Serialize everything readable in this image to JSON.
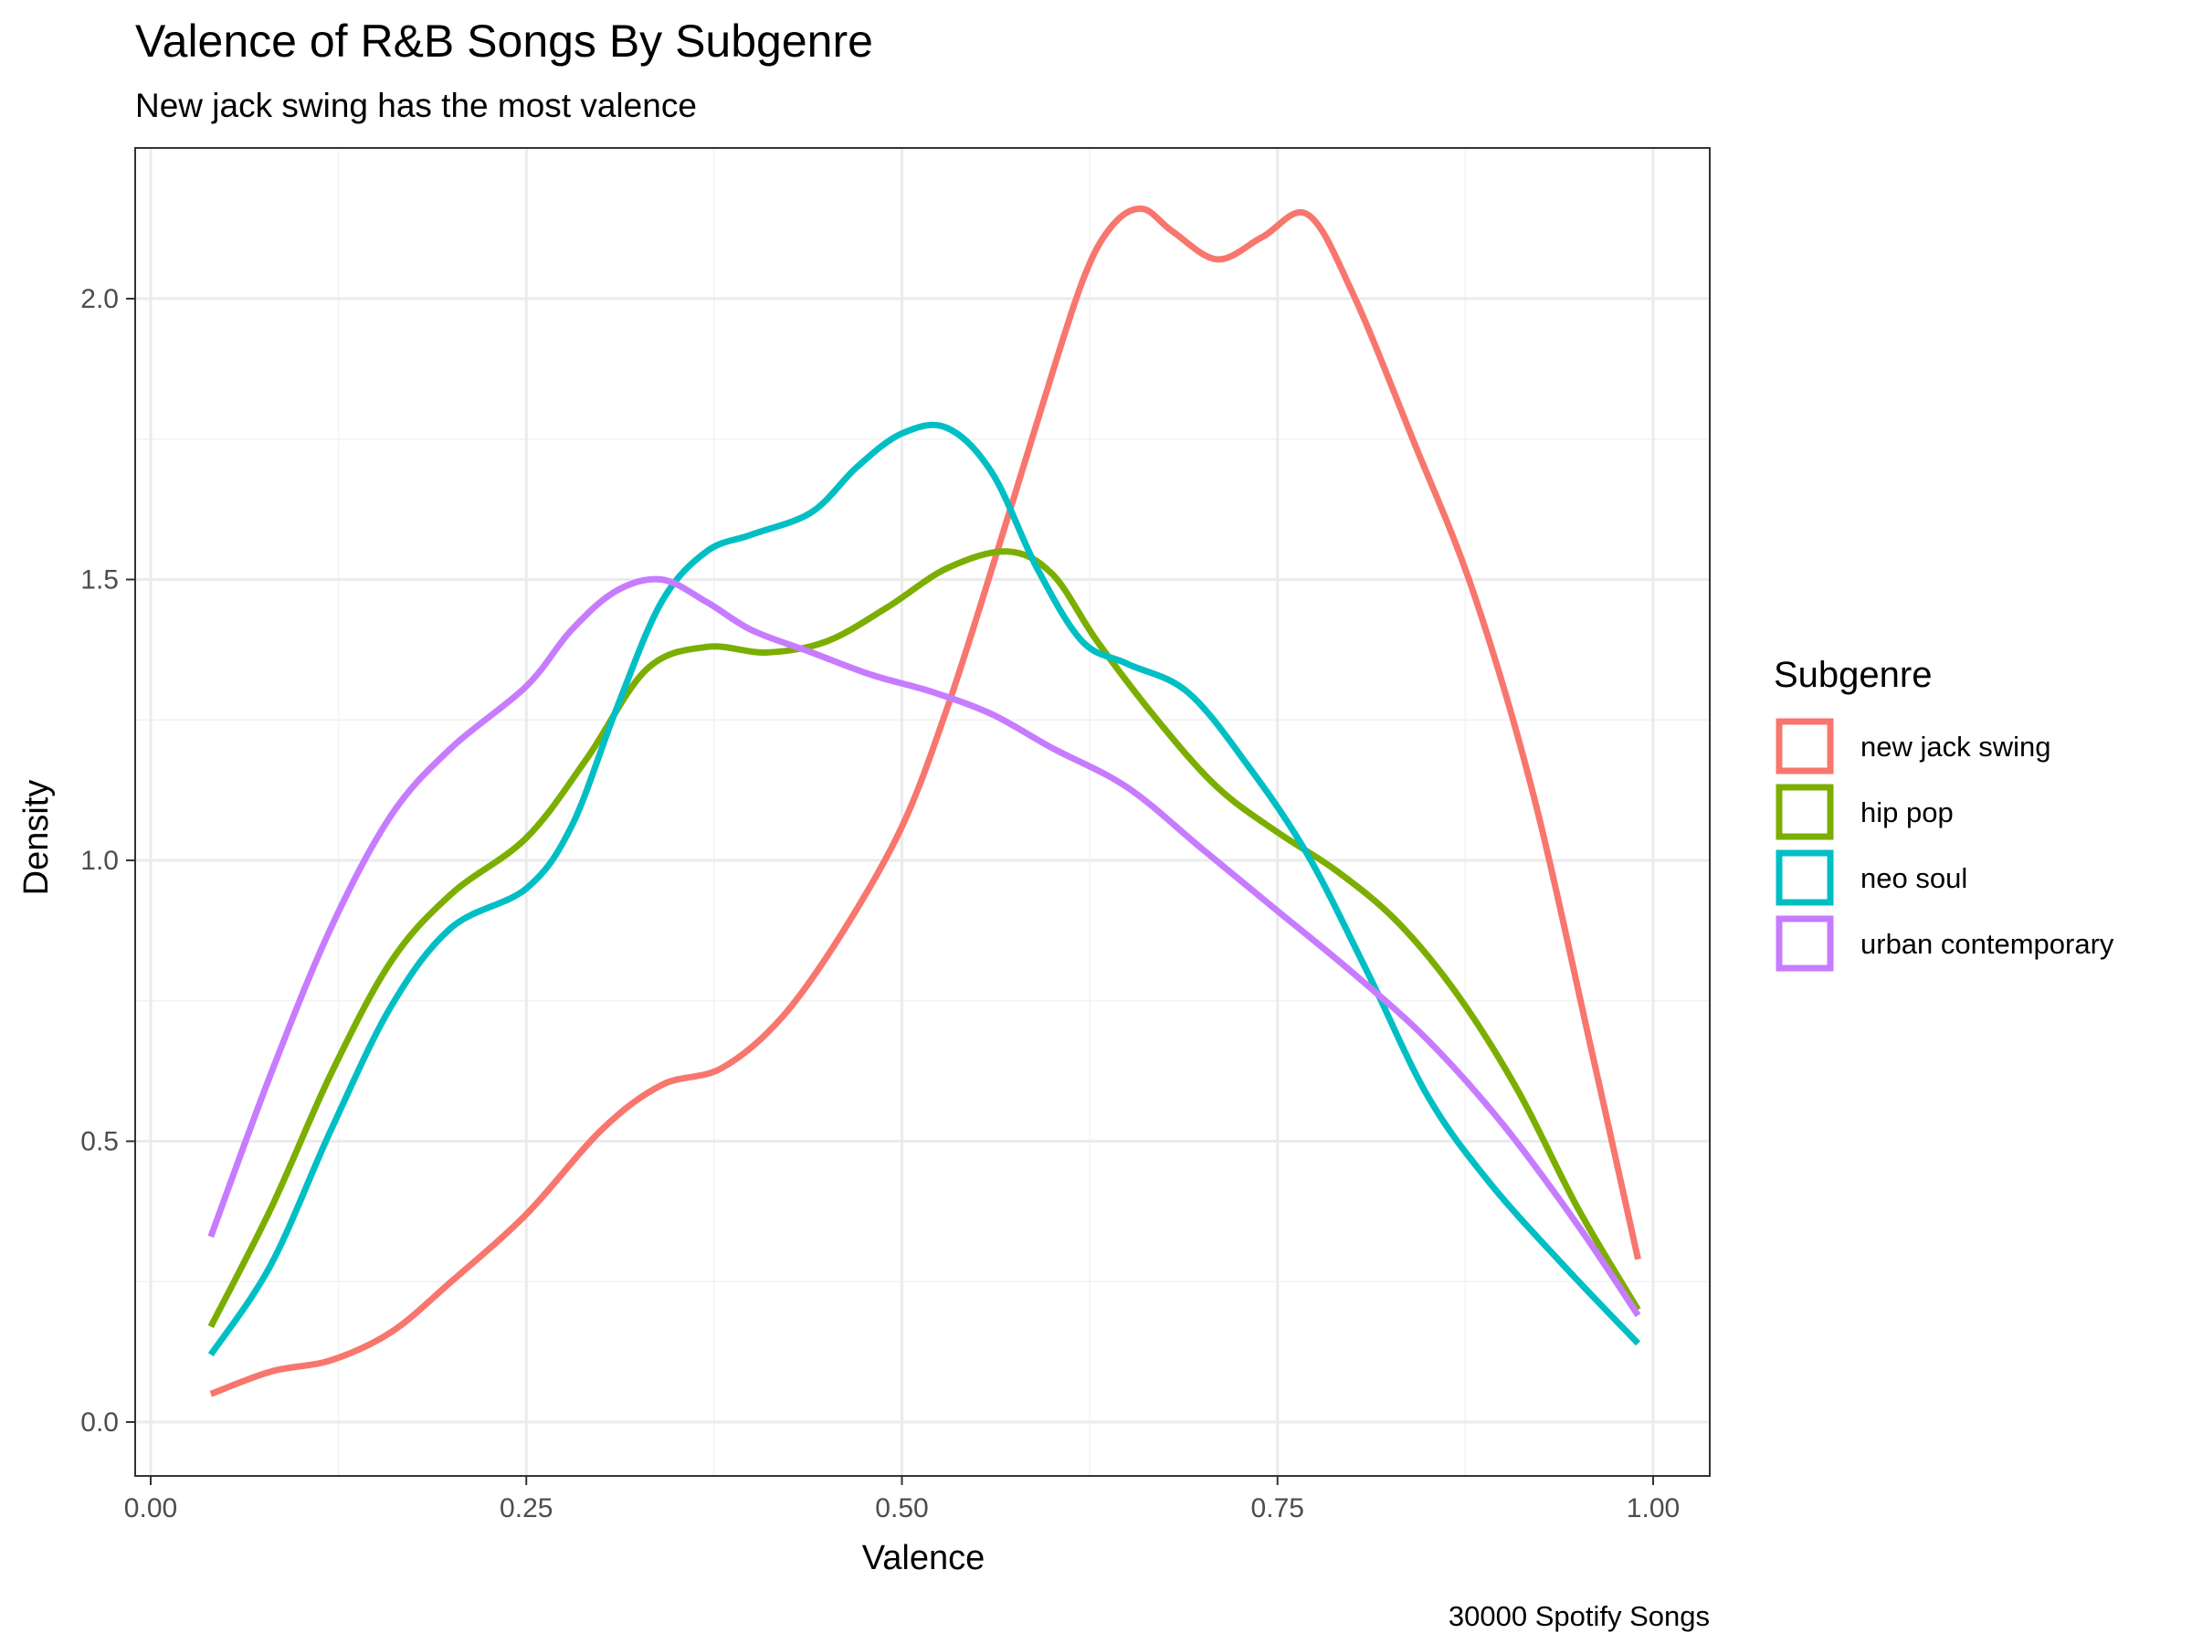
{
  "chart_data": {
    "type": "line",
    "title": "Valence of R&B Songs By Subgenre",
    "subtitle": "New jack swing has the most valence",
    "caption": "30000 Spotify Songs",
    "xlabel": "Valence",
    "ylabel": "Density",
    "xlim": [
      0.0,
      1.0
    ],
    "ylim": [
      0.0,
      2.25
    ],
    "x_ticks": [
      "0.00",
      "0.25",
      "0.50",
      "0.75",
      "1.00"
    ],
    "y_ticks": [
      "0.0",
      "0.5",
      "1.0",
      "1.5",
      "2.0"
    ],
    "grid": true,
    "legend": {
      "title": "Subgenre",
      "position": "right"
    },
    "series": [
      {
        "name": "new jack swing",
        "color": "#F8766D",
        "x": [
          0.04,
          0.08,
          0.12,
          0.16,
          0.2,
          0.25,
          0.3,
          0.34,
          0.38,
          0.42,
          0.46,
          0.5,
          0.53,
          0.56,
          0.59,
          0.62,
          0.64,
          0.66,
          0.68,
          0.71,
          0.74,
          0.77,
          0.8,
          0.84,
          0.88,
          0.92,
          0.96,
          0.99
        ],
        "y": [
          0.05,
          0.09,
          0.11,
          0.16,
          0.25,
          0.37,
          0.52,
          0.6,
          0.63,
          0.72,
          0.87,
          1.06,
          1.27,
          1.52,
          1.78,
          2.03,
          2.13,
          2.16,
          2.12,
          2.07,
          2.11,
          2.15,
          2.01,
          1.75,
          1.48,
          1.12,
          0.65,
          0.29
        ]
      },
      {
        "name": "hip pop",
        "color": "#7CAE00",
        "x": [
          0.04,
          0.08,
          0.12,
          0.16,
          0.2,
          0.25,
          0.29,
          0.33,
          0.37,
          0.41,
          0.45,
          0.49,
          0.53,
          0.57,
          0.6,
          0.63,
          0.67,
          0.71,
          0.75,
          0.79,
          0.83,
          0.87,
          0.91,
          0.95,
          0.99
        ],
        "y": [
          0.17,
          0.38,
          0.62,
          0.82,
          0.94,
          1.04,
          1.18,
          1.34,
          1.38,
          1.37,
          1.39,
          1.45,
          1.52,
          1.55,
          1.51,
          1.39,
          1.25,
          1.13,
          1.05,
          0.98,
          0.89,
          0.76,
          0.59,
          0.38,
          0.2
        ]
      },
      {
        "name": "neo soul",
        "color": "#00BFC4",
        "x": [
          0.04,
          0.08,
          0.12,
          0.16,
          0.2,
          0.25,
          0.28,
          0.31,
          0.34,
          0.37,
          0.4,
          0.44,
          0.47,
          0.5,
          0.53,
          0.56,
          0.59,
          0.62,
          0.65,
          0.69,
          0.73,
          0.77,
          0.81,
          0.85,
          0.89,
          0.94,
          0.99
        ],
        "y": [
          0.12,
          0.28,
          0.52,
          0.74,
          0.88,
          0.95,
          1.06,
          1.27,
          1.46,
          1.55,
          1.58,
          1.62,
          1.7,
          1.76,
          1.77,
          1.69,
          1.52,
          1.39,
          1.35,
          1.3,
          1.17,
          1.01,
          0.8,
          0.58,
          0.43,
          0.28,
          0.14
        ]
      },
      {
        "name": "urban contemporary",
        "color": "#C77CFF",
        "x": [
          0.04,
          0.08,
          0.12,
          0.16,
          0.2,
          0.25,
          0.28,
          0.31,
          0.34,
          0.37,
          0.4,
          0.44,
          0.48,
          0.52,
          0.56,
          0.6,
          0.65,
          0.7,
          0.75,
          0.8,
          0.85,
          0.9,
          0.95,
          0.99
        ],
        "y": [
          0.33,
          0.62,
          0.88,
          1.08,
          1.2,
          1.31,
          1.41,
          1.48,
          1.5,
          1.46,
          1.41,
          1.37,
          1.33,
          1.3,
          1.26,
          1.2,
          1.13,
          1.02,
          0.91,
          0.8,
          0.68,
          0.53,
          0.35,
          0.19
        ]
      }
    ]
  }
}
